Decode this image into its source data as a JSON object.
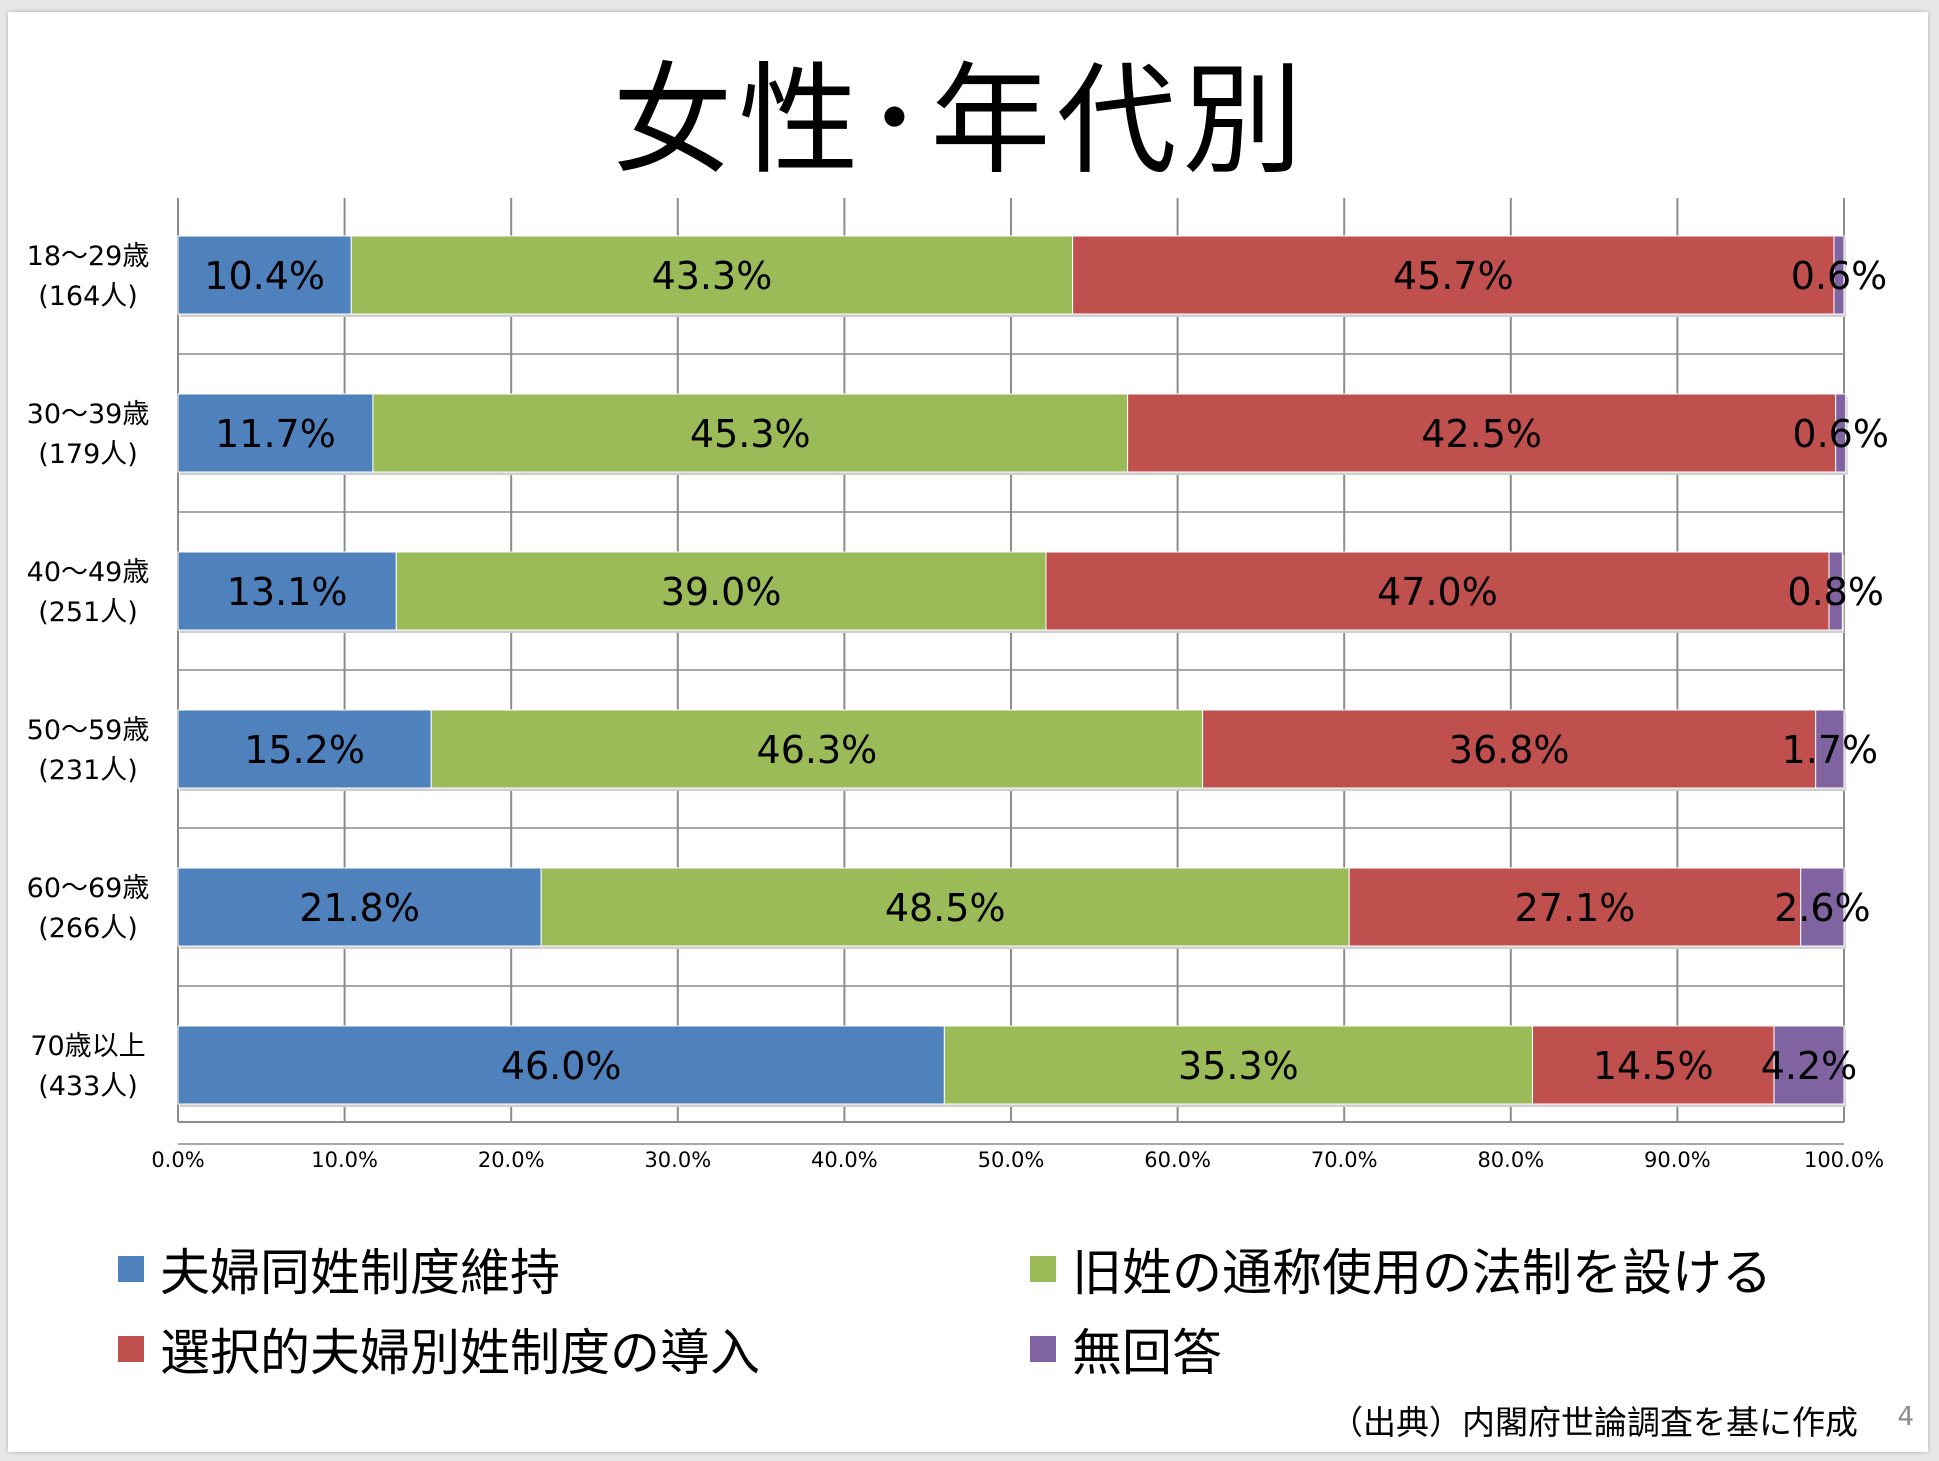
{
  "title": "女性･年代別",
  "source": "（出典）内閣府世論調査を基に作成",
  "page_number": "4",
  "legend": [
    {
      "label": "夫婦同姓制度維持",
      "color": "#4f81bd"
    },
    {
      "label": "旧姓の通称使用の法制を設ける",
      "color": "#9bbb59"
    },
    {
      "label": "選択的夫婦別姓制度の導入",
      "color": "#c0504d"
    },
    {
      "label": "無回答",
      "color": "#8064a2"
    }
  ],
  "chart_data": {
    "type": "bar",
    "orientation": "horizontal",
    "stacked": true,
    "categories": [
      [
        "18〜29歳",
        "(164人)"
      ],
      [
        "30〜39歳",
        "(179人)"
      ],
      [
        "40〜49歳",
        "(251人)"
      ],
      [
        "50〜59歳",
        "(231人)"
      ],
      [
        "60〜69歳",
        "(266人)"
      ],
      [
        "70歳以上",
        "(433人)"
      ]
    ],
    "series": [
      {
        "name": "夫婦同姓制度維持",
        "color": "#4f81bd",
        "values": [
          10.4,
          11.7,
          13.1,
          15.2,
          21.8,
          46.0
        ]
      },
      {
        "name": "旧姓の通称使用の法制を設ける",
        "color": "#9bbb59",
        "values": [
          43.3,
          45.3,
          39.0,
          46.3,
          48.5,
          35.3
        ]
      },
      {
        "name": "選択的夫婦別姓制度の導入",
        "color": "#c0504d",
        "values": [
          45.7,
          42.5,
          47.0,
          36.8,
          27.1,
          14.5
        ]
      },
      {
        "name": "無回答",
        "color": "#8064a2",
        "values": [
          0.6,
          0.6,
          0.8,
          1.7,
          2.6,
          4.2
        ]
      }
    ],
    "data_labels": [
      [
        "10.4%",
        "11.7%",
        "13.1%",
        "15.2%",
        "21.8%",
        "46.0%"
      ],
      [
        "43.3%",
        "45.3%",
        "39.0%",
        "46.3%",
        "48.5%",
        "35.3%"
      ],
      [
        "45.7%",
        "42.5%",
        "47.0%",
        "36.8%",
        "27.1%",
        "14.5%"
      ],
      [
        "0.6%",
        "0.6%",
        "0.8%",
        "1.7%",
        "2.6%",
        "4.2%"
      ]
    ],
    "x_ticks": [
      "0.0%",
      "10.0%",
      "20.0%",
      "30.0%",
      "40.0%",
      "50.0%",
      "60.0%",
      "70.0%",
      "80.0%",
      "90.0%",
      "100.0%"
    ],
    "xlim": [
      0,
      100
    ],
    "xlabel": "",
    "ylabel": "",
    "grid": "vertical",
    "legend_position": "bottom"
  }
}
